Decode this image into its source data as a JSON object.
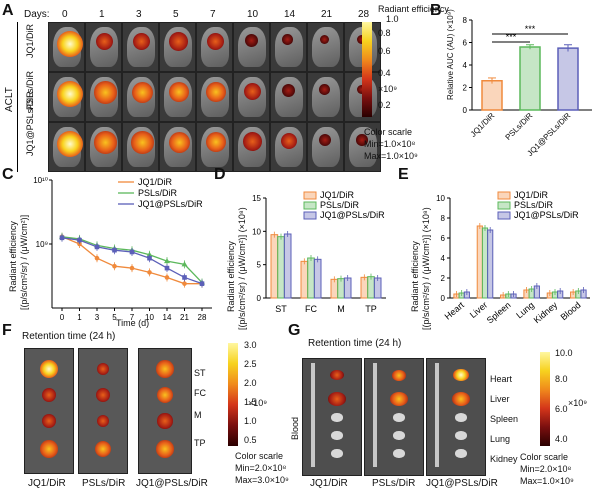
{
  "panel_labels": {
    "A": "A",
    "B": "B",
    "C": "C",
    "D": "D",
    "E": "E",
    "F": "F",
    "G": "G"
  },
  "panelA": {
    "days_label": "Days:",
    "days": [
      "0",
      "1",
      "3",
      "5",
      "7",
      "10",
      "14",
      "21",
      "28"
    ],
    "group_label": "ACLT",
    "rows": [
      "JQ1/DiR",
      "PSLs/DiR",
      "JQ1@PSLs/DiR"
    ],
    "colorbar": {
      "title": "Radiant efficiency",
      "ticks": [
        "1.0",
        "0.8",
        "0.6",
        "0.4",
        "0.2"
      ],
      "unit": "×10⁹",
      "scale_title": "Color scarle",
      "min": "Min=1.0×10⁸",
      "max": "Max=1.0×10⁹"
    },
    "intensity": [
      [
        1.0,
        0.5,
        0.55,
        0.6,
        0.5,
        0.3,
        0.15,
        0.1,
        0.1
      ],
      [
        1.0,
        0.8,
        0.75,
        0.7,
        0.65,
        0.5,
        0.3,
        0.15,
        0.1
      ],
      [
        1.0,
        0.8,
        0.8,
        0.75,
        0.7,
        0.6,
        0.45,
        0.25,
        0.2
      ]
    ]
  },
  "panelB": {
    "ylabel": "Relative AUC (AU) (×10⁹)",
    "sig": [
      "***",
      "***"
    ]
  },
  "panelC": {
    "ylabel_l1": "Radiant efficiency",
    "ylabel_l2": "[(p/s/cm²/sr) / (μW/cm²)]",
    "xlabel": "Time (d)",
    "ytick_top": "10¹⁰",
    "ytick_mid": "10⁹",
    "xticks": [
      "0",
      "1",
      "3",
      "5",
      "7",
      "10",
      "14",
      "21",
      "28"
    ]
  },
  "panelD": {
    "ylabel_l1": "Radiant efficiency",
    "ylabel_l2": "[(p/s/cm²/sr) / (μW/cm²)] (×10⁸)"
  },
  "panelE": {
    "ylabel_l1": "Radiant efficiency",
    "ylabel_l2": "[(p/s/cm²/sr) / (μW/cm²)] (×10⁸)"
  },
  "panelF": {
    "title": "Retention time (24 h)",
    "organs": [
      "ST",
      "FC",
      "M",
      "TP"
    ],
    "groups": [
      "JQ1/DiR",
      "PSLs/DiR",
      "JQ1@PSLs/DiR"
    ],
    "colorbar": {
      "ticks": [
        "3.0",
        "2.5",
        "2.0",
        "1.5",
        "1.0",
        "0.5"
      ],
      "unit": "×10⁹",
      "scale_title": "Color scarle",
      "min": "Min=2.0×10⁸",
      "max": "Max=3.0×10⁹"
    }
  },
  "panelG": {
    "title": "Retention time (24 h)",
    "side_label": "Blood",
    "organs": [
      "Heart",
      "Liver",
      "Spleen",
      "Lung",
      "Kidney"
    ],
    "groups": [
      "JQ1/DiR",
      "PSLs/DiR",
      "JQ1@PSLs/DiR"
    ],
    "colorbar": {
      "ticks": [
        "10.0",
        "8.0",
        "6.0",
        "4.0"
      ],
      "unit": "×10⁹",
      "scale_title": "Color scarle",
      "min": "Min=2.0×10⁸",
      "max": "Max=1.0×10⁹"
    }
  },
  "colors": {
    "JQ1": "#f08a3c",
    "PSLs": "#5cb85c",
    "JQ1PSLs": "#5b5fb8"
  },
  "chart_data": [
    {
      "type": "bar",
      "panel": "B",
      "categories": [
        "JQ1/DiR",
        "PSLs/DiR",
        "JQ1@PSLs/DiR"
      ],
      "values": [
        2.6,
        5.6,
        5.5
      ],
      "errors": [
        0.25,
        0.2,
        0.3
      ],
      "ylabel": "Relative AUC (AU) (×10⁹)",
      "ylim": [
        0,
        8
      ],
      "yticks": [
        0,
        2,
        4,
        6,
        8
      ]
    },
    {
      "type": "line",
      "panel": "C",
      "x": [
        0,
        1,
        3,
        5,
        7,
        10,
        14,
        21,
        28
      ],
      "xlabel": "Time (d)",
      "ylabel": "Radiant efficiency [(p/s/cm²/sr) / (μW/cm²)]",
      "yscale": "log",
      "ylim": [
        100000000,
        10000000000
      ],
      "series": [
        {
          "name": "JQ1/DiR",
          "values": [
            1300000000,
            1000000000,
            600000000,
            450000000,
            420000000,
            360000000,
            300000000,
            240000000,
            240000000
          ]
        },
        {
          "name": "PSLs/DiR",
          "values": [
            1300000000,
            1200000000,
            950000000,
            850000000,
            800000000,
            680000000,
            540000000,
            480000000,
            250000000
          ]
        },
        {
          "name": "JQ1@PSLs/DiR",
          "values": [
            1250000000,
            1150000000,
            900000000,
            800000000,
            750000000,
            600000000,
            420000000,
            300000000,
            240000000
          ]
        }
      ]
    },
    {
      "type": "bar",
      "panel": "D",
      "categories": [
        "ST",
        "FC",
        "M",
        "TP"
      ],
      "ylim": [
        0,
        15
      ],
      "yticks": [
        0,
        5,
        10,
        15
      ],
      "series": [
        {
          "name": "JQ1/DiR",
          "values": [
            9.5,
            5.5,
            2.8,
            3.1
          ]
        },
        {
          "name": "PSLs/DiR",
          "values": [
            9.2,
            6.0,
            2.9,
            3.2
          ]
        },
        {
          "name": "JQ1@PSLs/DiR",
          "values": [
            9.6,
            5.8,
            3.0,
            3.0
          ]
        }
      ]
    },
    {
      "type": "bar",
      "panel": "E",
      "categories": [
        "Heart",
        "Liver",
        "Spleen",
        "Lung",
        "Kidney",
        "Blood"
      ],
      "ylim": [
        0,
        10
      ],
      "yticks": [
        0,
        2,
        4,
        6,
        8,
        10
      ],
      "series": [
        {
          "name": "JQ1/DiR",
          "values": [
            0.4,
            7.2,
            0.3,
            0.8,
            0.5,
            0.6
          ]
        },
        {
          "name": "PSLs/DiR",
          "values": [
            0.5,
            7.0,
            0.4,
            0.9,
            0.6,
            0.7
          ]
        },
        {
          "name": "JQ1@PSLs/DiR",
          "values": [
            0.6,
            6.8,
            0.4,
            1.2,
            0.7,
            0.8
          ]
        }
      ]
    }
  ]
}
